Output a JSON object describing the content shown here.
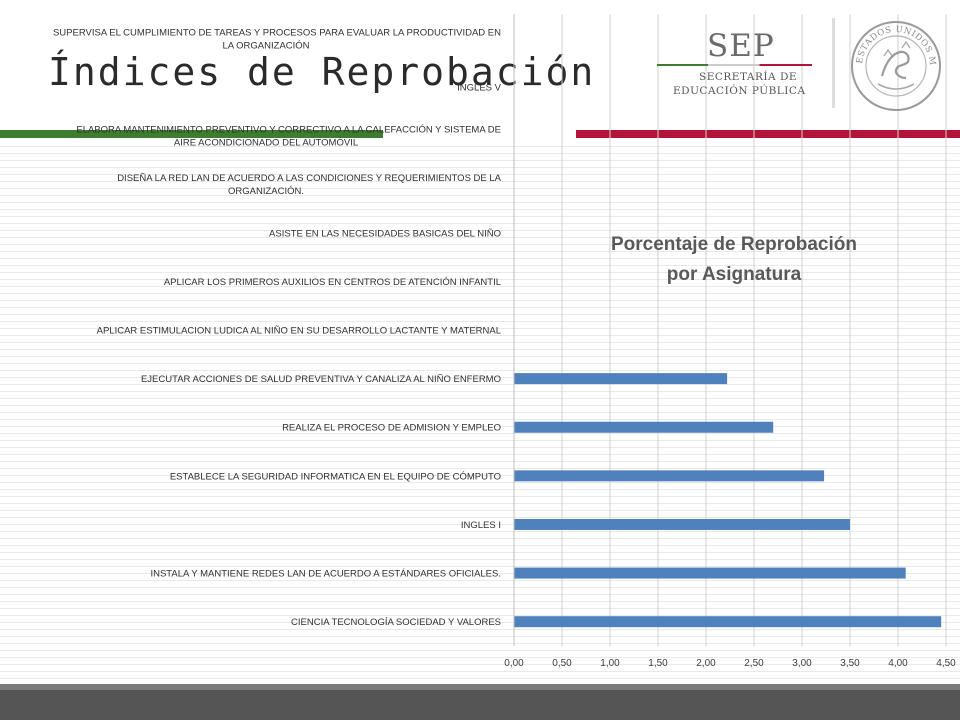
{
  "slide": {
    "title": "Índices de Reprobación"
  },
  "logo": {
    "word": "SEP",
    "line1": "SECRETARÍA DE",
    "line2": "EDUCACIÓN PÚBLICA",
    "seal_text": "ESTADOS UNIDOS MEXICANOS"
  },
  "colors": {
    "bar": "#4f81bd",
    "title": "#595959",
    "green": "#3e7d2e",
    "red": "#b3143a"
  },
  "chart_data": {
    "type": "bar",
    "orientation": "horizontal",
    "title": "Porcentaje de Reprobación por Asignatura",
    "title_lines": [
      "Porcentaje de Reprobación",
      "por Asignatura"
    ],
    "categories": [
      "SUPERVISA EL CUMPLIMIENTO DE TAREAS Y PROCESOS PARA EVALUAR LA PRODUCTIVIDAD EN LA ORGANIZACIÓN",
      "INGLES V",
      "ELABORA MANTENIMIENTO PREVENTIVO Y CORRECTIVO A LA CALEFACCIÓN Y SISTEMA DE AIRE ACONDICIONADO DEL AUTOMÓVIL",
      "DISEÑA LA RED LAN DE ACUERDO A LAS CONDICIONES Y REQUERIMIENTOS DE LA ORGANIZACIÓN.",
      "ASISTE EN LAS NECESIDADES BASICAS DEL NIÑO",
      "APLICAR LOS PRIMEROS AUXILIOS EN CENTROS DE ATENCIÓN INFANTIL",
      "APLICAR ESTIMULACION LUDICA AL NIÑO EN SU DESARROLLO LACTANTE Y MATERNAL",
      "EJECUTAR ACCIONES DE SALUD PREVENTIVA Y CANALIZA AL NIÑO ENFERMO",
      "REALIZA EL PROCESO DE ADMISION Y EMPLEO",
      "ESTABLECE LA SEGURIDAD INFORMATICA EN EL EQUIPO DE CÓMPUTO",
      "INGLES I",
      "INSTALA Y MANTIENE REDES LAN DE ACUERDO A ESTÁNDARES OFICIALES.",
      "CIENCIA TECNOLOGÍA SOCIEDAD Y VALORES"
    ],
    "category_lines": [
      [
        "SUPERVISA EL CUMPLIMIENTO DE TAREAS Y PROCESOS PARA EVALUAR LA PRODUCTIVIDAD EN",
        "LA ORGANIZACIÓN"
      ],
      [
        "INGLES V"
      ],
      [
        "ELABORA MANTENIMIENTO PREVENTIVO Y CORRECTIVO A LA CALEFACCIÓN Y SISTEMA DE",
        "AIRE ACONDICIONADO DEL AUTOMÓVIL"
      ],
      [
        "DISEÑA LA RED LAN DE ACUERDO A LAS CONDICIONES Y REQUERIMIENTOS DE LA",
        "ORGANIZACIÓN."
      ],
      [
        "ASISTE EN LAS NECESIDADES BASICAS DEL NIÑO"
      ],
      [
        "APLICAR LOS PRIMEROS AUXILIOS EN CENTROS DE ATENCIÓN INFANTIL"
      ],
      [
        "APLICAR ESTIMULACION LUDICA AL NIÑO EN SU DESARROLLO LACTANTE Y MATERNAL"
      ],
      [
        "EJECUTAR ACCIONES DE SALUD PREVENTIVA Y CANALIZA AL NIÑO ENFERMO"
      ],
      [
        "REALIZA EL PROCESO DE ADMISION Y EMPLEO"
      ],
      [
        "ESTABLECE LA SEGURIDAD INFORMATICA EN EL EQUIPO DE CÓMPUTO"
      ],
      [
        "INGLES I"
      ],
      [
        "INSTALA Y MANTIENE REDES LAN DE ACUERDO A ESTÁNDARES OFICIALES."
      ],
      [
        "CIENCIA TECNOLOGÍA SOCIEDAD Y VALORES"
      ]
    ],
    "values": [
      null,
      null,
      null,
      null,
      null,
      null,
      null,
      2.22,
      2.7,
      3.23,
      3.5,
      4.08,
      4.45
    ],
    "xlim": [
      0,
      4.5
    ],
    "xticks": [
      "0,00",
      "0,50",
      "1,00",
      "1,50",
      "2,00",
      "2,50",
      "3,00",
      "3,50",
      "4,00",
      "4,50"
    ],
    "xtick_values": [
      0,
      0.5,
      1,
      1.5,
      2,
      2.5,
      3,
      3.5,
      4,
      4.5
    ],
    "grid": "vertical",
    "legend": "none"
  }
}
